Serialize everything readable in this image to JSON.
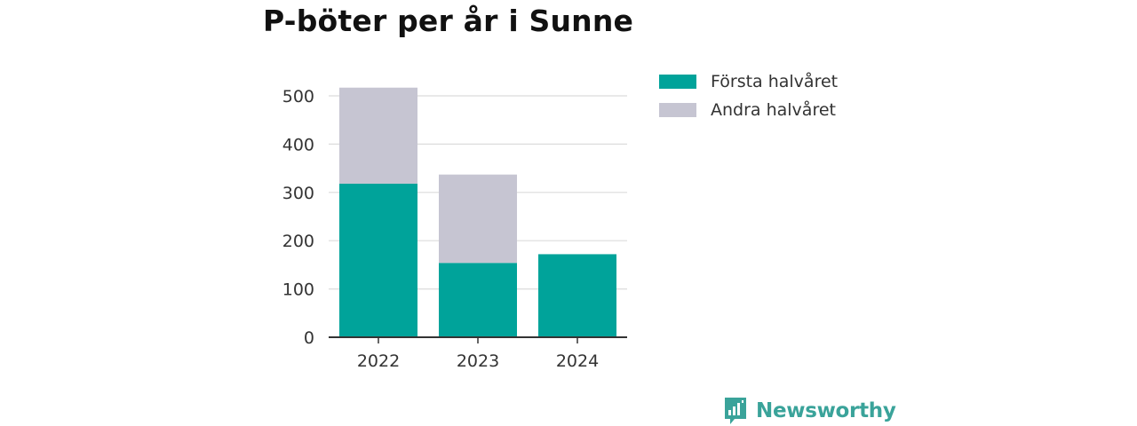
{
  "title": "P-böter per år i Sunne",
  "brand": {
    "name": "Newsworthy",
    "color": "#3aa39a",
    "icon": "newsworthy-logo-icon"
  },
  "chart_data": {
    "type": "bar",
    "stacked": true,
    "title": "P-böter per år i Sunne",
    "categories": [
      "2022",
      "2023",
      "2024"
    ],
    "series": [
      {
        "name": "Första halvåret",
        "color": "#00a39a",
        "values": [
          318,
          154,
          172
        ]
      },
      {
        "name": "Andra halvåret",
        "color": "#c6c5d2",
        "values": [
          199,
          183,
          0
        ]
      }
    ],
    "ylim": [
      0,
      500
    ],
    "yticks": [
      0,
      100,
      200,
      300,
      400,
      500
    ],
    "grid": true,
    "legend": "top-right",
    "xlabel": "",
    "ylabel": ""
  }
}
